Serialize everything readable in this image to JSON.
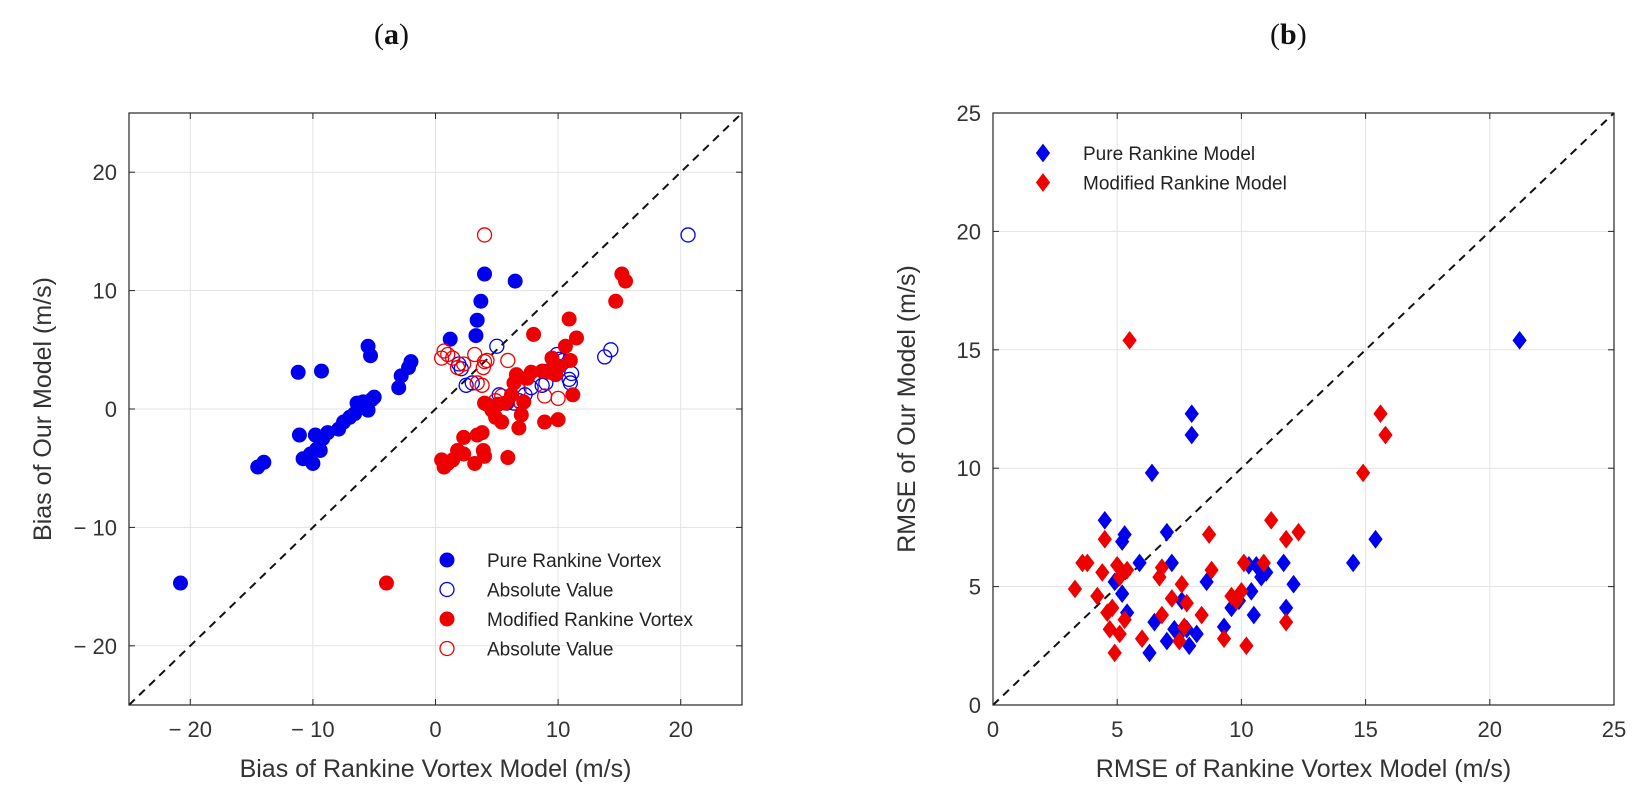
{
  "panels": {
    "a": {
      "label_open": "(",
      "label_letter": "a",
      "label_close": ")"
    },
    "b": {
      "label_open": "(",
      "label_letter": "b",
      "label_close": ")"
    }
  },
  "chart_data": [
    {
      "id": "a",
      "type": "scatter",
      "xlabel": "Bias of Rankine Vortex Model (m/s)",
      "ylabel": "Bias of Our Model (m/s)",
      "xlim": [
        -25,
        25
      ],
      "ylim": [
        -25,
        25
      ],
      "xticks": [
        -20,
        -10,
        0,
        10,
        20
      ],
      "yticks": [
        -20,
        -10,
        0,
        10,
        20
      ],
      "xtick_labels": [
        "− 20",
        "− 10",
        "0",
        "10",
        "20"
      ],
      "ytick_labels": [
        "− 20",
        "− 10",
        "0",
        "10",
        "20"
      ],
      "grid": true,
      "diagonal": "y = x dashed",
      "legend_position": "bottom-right",
      "colors": {
        "blue": "#0000ee",
        "red": "#ee0000"
      },
      "series": [
        {
          "name": "Pure Rankine Vortex",
          "color": "#0000ee",
          "marker": "filled-circle",
          "points": [
            [
              -20.8,
              -14.7
            ],
            [
              -14.5,
              -4.9
            ],
            [
              -14,
              -4.5
            ],
            [
              -11.2,
              3.1
            ],
            [
              -9.3,
              3.2
            ],
            [
              -11.1,
              -2.2
            ],
            [
              -10.8,
              -4.2
            ],
            [
              -10.2,
              -3.8
            ],
            [
              -10,
              -4.6
            ],
            [
              -9.7,
              -3.4
            ],
            [
              -9.4,
              -3.5
            ],
            [
              -9.8,
              -2.2
            ],
            [
              -9.2,
              -2.5
            ],
            [
              -8.8,
              -2.0
            ],
            [
              -7.9,
              -1.7
            ],
            [
              -7.5,
              -1.1
            ],
            [
              -7.0,
              -0.7
            ],
            [
              -6.6,
              -0.4
            ],
            [
              -6.4,
              0.5
            ],
            [
              -5.9,
              0.6
            ],
            [
              -5.5,
              -0.1
            ],
            [
              -5.2,
              0.8
            ],
            [
              -5.0,
              1.0
            ],
            [
              -5.3,
              4.5
            ],
            [
              -5.5,
              5.3
            ],
            [
              -3.0,
              1.8
            ],
            [
              -2.8,
              2.8
            ],
            [
              -2.2,
              3.5
            ],
            [
              -2.0,
              4.0
            ],
            [
              1.2,
              5.9
            ],
            [
              3.3,
              6.2
            ],
            [
              3.4,
              7.5
            ],
            [
              3.7,
              9.1
            ],
            [
              4.0,
              11.4
            ],
            [
              6.5,
              10.8
            ]
          ]
        },
        {
          "name": "Absolute Value",
          "color": "#0000ee",
          "marker": "open-circle",
          "points": [
            [
              20.6,
              14.7
            ],
            [
              14.3,
              5.0
            ],
            [
              13.8,
              4.4
            ],
            [
              11.1,
              3.0
            ],
            [
              11,
              2.2
            ],
            [
              10.9,
              2.5
            ],
            [
              10.4,
              4.1
            ],
            [
              10.1,
              4.2
            ],
            [
              9.9,
              4.6
            ],
            [
              9.8,
              3.6
            ],
            [
              9.2,
              3.2
            ],
            [
              9.0,
              2.2
            ],
            [
              8.7,
              2.0
            ],
            [
              7.8,
              1.8
            ],
            [
              7.3,
              1.2
            ],
            [
              6.8,
              0.7
            ],
            [
              6.4,
              0.5
            ],
            [
              5.8,
              0.5
            ],
            [
              5.2,
              1.2
            ],
            [
              5.0,
              5.3
            ],
            [
              3.0,
              2.2
            ],
            [
              2.5,
              2.0
            ],
            [
              2.1,
              3.4
            ],
            [
              1.9,
              3.8
            ]
          ]
        },
        {
          "name": "Modified Rankine Vortex",
          "color": "#ee0000",
          "marker": "filled-circle",
          "points": [
            [
              -4.0,
              -14.7
            ],
            [
              0.5,
              -4.3
            ],
            [
              0.7,
              -4.9
            ],
            [
              1.0,
              -4.6
            ],
            [
              1.4,
              -4.3
            ],
            [
              1.8,
              -3.5
            ],
            [
              2.3,
              -3.8
            ],
            [
              2.3,
              -2.4
            ],
            [
              3.2,
              -4.6
            ],
            [
              3.4,
              -2.2
            ],
            [
              3.8,
              -2.0
            ],
            [
              3.9,
              -3.5
            ],
            [
              4.0,
              -4.0
            ],
            [
              4.0,
              0.5
            ],
            [
              4.2,
              0.4
            ],
            [
              4.6,
              -0.1
            ],
            [
              4.9,
              -0.7
            ],
            [
              5.1,
              0.4
            ],
            [
              5.4,
              -1.1
            ],
            [
              5.7,
              0.5
            ],
            [
              5.9,
              -4.1
            ],
            [
              6.2,
              1.2
            ],
            [
              6.4,
              2.2
            ],
            [
              6.6,
              2.9
            ],
            [
              6.8,
              -1.6
            ],
            [
              7.0,
              -0.5
            ],
            [
              7.2,
              0.6
            ],
            [
              7.5,
              2.6
            ],
            [
              7.8,
              3.1
            ],
            [
              8.0,
              6.3
            ],
            [
              8.7,
              3.2
            ],
            [
              8.9,
              -1.1
            ],
            [
              9.3,
              3.1
            ],
            [
              9.5,
              4.3
            ],
            [
              9.6,
              3.5
            ],
            [
              9.8,
              2.9
            ],
            [
              10.0,
              -0.9
            ],
            [
              10.1,
              3.6
            ],
            [
              10.6,
              5.3
            ],
            [
              10.9,
              7.6
            ],
            [
              11.0,
              4.1
            ],
            [
              11.2,
              1.2
            ],
            [
              11.5,
              6.0
            ],
            [
              14.7,
              9.1
            ],
            [
              15.2,
              11.4
            ],
            [
              15.5,
              10.8
            ]
          ]
        },
        {
          "name": "Absolute Value",
          "color": "#ee0000",
          "marker": "open-circle",
          "points": [
            [
              4.0,
              14.7
            ],
            [
              0.5,
              4.3
            ],
            [
              0.7,
              4.9
            ],
            [
              1.0,
              4.6
            ],
            [
              1.4,
              4.3
            ],
            [
              1.8,
              3.5
            ],
            [
              2.3,
              3.8
            ],
            [
              3.2,
              4.6
            ],
            [
              3.4,
              2.2
            ],
            [
              3.8,
              2.0
            ],
            [
              3.9,
              3.5
            ],
            [
              4.0,
              4.0
            ],
            [
              4.2,
              4.1
            ],
            [
              5.9,
              4.1
            ],
            [
              6.8,
              1.6
            ],
            [
              8.9,
              1.1
            ],
            [
              10.0,
              0.9
            ],
            [
              7.0,
              0.5
            ],
            [
              4.9,
              0.7
            ],
            [
              5.4,
              1.1
            ]
          ]
        }
      ]
    },
    {
      "id": "b",
      "type": "scatter",
      "xlabel": "RMSE of Rankine Vortex Model (m/s)",
      "ylabel": "RMSE of Our Model (m/s)",
      "xlim": [
        0,
        25
      ],
      "ylim": [
        0,
        25
      ],
      "xticks": [
        0,
        5,
        10,
        15,
        20,
        25
      ],
      "yticks": [
        0,
        5,
        10,
        15,
        20,
        25
      ],
      "xtick_labels": [
        "0",
        "5",
        "10",
        "15",
        "20",
        "25"
      ],
      "ytick_labels": [
        "0",
        "5",
        "10",
        "15",
        "20",
        "25"
      ],
      "grid": true,
      "diagonal": "y = x dashed",
      "legend_position": "top-left",
      "series": [
        {
          "name": "Pure Rankine Model",
          "color": "#0000ee",
          "marker": "filled-diamond",
          "points": [
            [
              21.2,
              15.4
            ],
            [
              4.5,
              7.8
            ],
            [
              5.3,
              7.2
            ],
            [
              5.2,
              6.9
            ],
            [
              4.9,
              5.2
            ],
            [
              5.2,
              4.7
            ],
            [
              5.4,
              3.9
            ],
            [
              5.9,
              6.0
            ],
            [
              6.3,
              2.2
            ],
            [
              6.4,
              9.8
            ],
            [
              6.5,
              3.5
            ],
            [
              7.0,
              7.3
            ],
            [
              7.0,
              2.7
            ],
            [
              7.2,
              6.0
            ],
            [
              7.3,
              3.2
            ],
            [
              7.5,
              3.0
            ],
            [
              7.6,
              4.4
            ],
            [
              7.8,
              3.2
            ],
            [
              7.9,
              2.5
            ],
            [
              8.0,
              12.3
            ],
            [
              8.0,
              11.4
            ],
            [
              8.2,
              3.0
            ],
            [
              8.6,
              5.2
            ],
            [
              9.3,
              3.3
            ],
            [
              9.6,
              4.1
            ],
            [
              9.9,
              4.4
            ],
            [
              10.3,
              5.9
            ],
            [
              10.4,
              4.8
            ],
            [
              10.5,
              3.8
            ],
            [
              10.6,
              5.9
            ],
            [
              10.8,
              5.4
            ],
            [
              11.0,
              5.6
            ],
            [
              11.7,
              6.0
            ],
            [
              11.8,
              4.1
            ],
            [
              12.1,
              5.1
            ],
            [
              14.5,
              6.0
            ],
            [
              15.4,
              7.0
            ]
          ]
        },
        {
          "name": "Modified Rankine Model",
          "color": "#ee0000",
          "marker": "filled-diamond",
          "points": [
            [
              5.5,
              15.4
            ],
            [
              3.3,
              4.9
            ],
            [
              3.6,
              6.0
            ],
            [
              3.8,
              6.0
            ],
            [
              4.2,
              4.6
            ],
            [
              4.4,
              5.6
            ],
            [
              4.5,
              7.0
            ],
            [
              4.6,
              3.9
            ],
            [
              4.7,
              3.2
            ],
            [
              4.8,
              4.1
            ],
            [
              4.9,
              2.2
            ],
            [
              5.0,
              5.9
            ],
            [
              5.1,
              5.4
            ],
            [
              5.1,
              3.0
            ],
            [
              5.3,
              3.6
            ],
            [
              5.4,
              5.7
            ],
            [
              6.0,
              2.8
            ],
            [
              6.7,
              5.4
            ],
            [
              6.8,
              3.8
            ],
            [
              6.8,
              5.8
            ],
            [
              7.2,
              4.5
            ],
            [
              7.5,
              2.7
            ],
            [
              7.6,
              5.1
            ],
            [
              7.7,
              3.3
            ],
            [
              7.8,
              4.3
            ],
            [
              8.4,
              3.8
            ],
            [
              8.7,
              7.2
            ],
            [
              8.8,
              5.7
            ],
            [
              9.3,
              2.8
            ],
            [
              9.6,
              4.6
            ],
            [
              9.8,
              4.4
            ],
            [
              10.0,
              4.8
            ],
            [
              10.1,
              6.0
            ],
            [
              10.2,
              2.5
            ],
            [
              10.9,
              6.0
            ],
            [
              11.2,
              7.8
            ],
            [
              11.8,
              3.5
            ],
            [
              11.8,
              7.0
            ],
            [
              12.3,
              7.3
            ],
            [
              14.9,
              9.8
            ],
            [
              15.6,
              12.3
            ],
            [
              15.8,
              11.4
            ]
          ]
        }
      ]
    }
  ]
}
